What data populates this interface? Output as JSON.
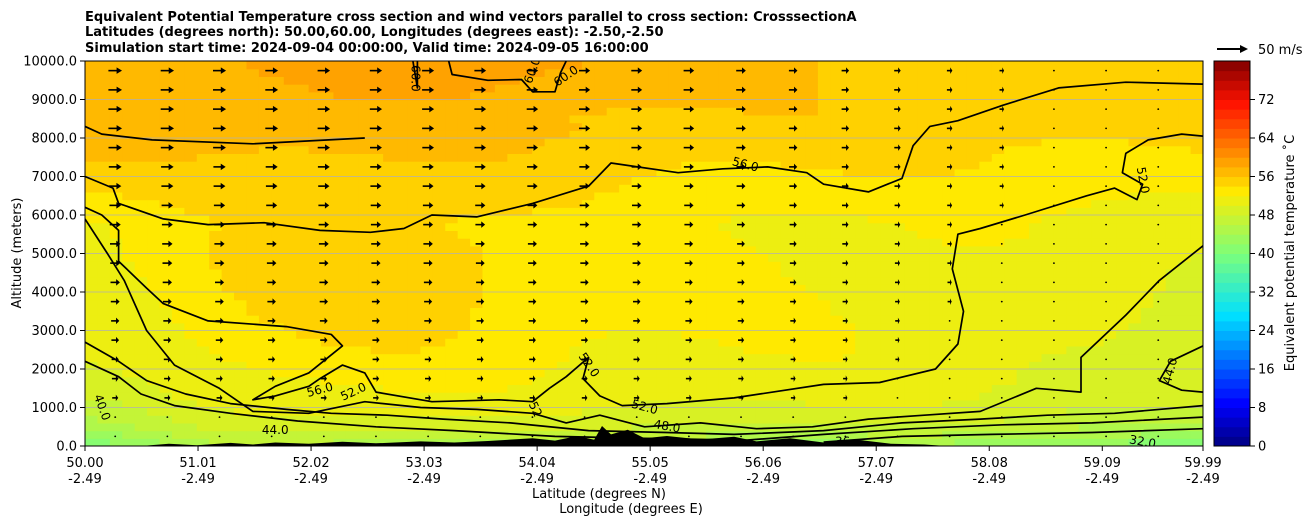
{
  "chart_data": {
    "type": "heatmap",
    "title_lines": [
      "Equivalent Potential Temperature cross section and wind vectors parallel to cross section: CrosssectionA",
      "Latitudes (degrees north): 50.00,60.00, Longitudes (degrees east): -2.50,-2.50",
      "Simulation start time: 2024-09-04 00:00:00, Valid time: 2024-09-05 16:00:00"
    ],
    "y_axis": {
      "label": "Altitude (meters)",
      "range": [
        0,
        10000
      ],
      "ticks": [
        "0.0",
        "1000.0",
        "2000.0",
        "3000.0",
        "4000.0",
        "5000.0",
        "6000.0",
        "7000.0",
        "8000.0",
        "9000.0",
        "10000.0"
      ],
      "grid": true
    },
    "x_axis": {
      "label_lat": "Latitude (degrees N)",
      "label_lon": "Longitude (degrees E)",
      "range": [
        50.0,
        59.99
      ],
      "ticks_lat": [
        "50.00",
        "51.01",
        "52.02",
        "53.03",
        "54.04",
        "55.05",
        "56.06",
        "57.07",
        "58.08",
        "59.09",
        "59.99"
      ],
      "ticks_lon": [
        "-2.49",
        "-2.49",
        "-2.49",
        "-2.49",
        "-2.49",
        "-2.49",
        "-2.49",
        "-2.49",
        "-2.49",
        "-2.49",
        "-2.49"
      ]
    },
    "colorbar": {
      "label": "Equivalent potential temperature $^\\circ$C",
      "label_text": "Equivalent potential temperature ˚C",
      "range": [
        0,
        80
      ],
      "ticks": [
        "0",
        "8",
        "16",
        "24",
        "32",
        "40",
        "48",
        "56",
        "64",
        "72"
      ]
    },
    "quiver_key": {
      "label": "50 m/s",
      "speed": 50
    },
    "contour_levels": [
      32,
      36,
      40,
      44,
      48,
      52,
      56,
      60
    ],
    "contour_labels": [
      {
        "text": "60.0",
        "lat": 52.95,
        "alt": 9550,
        "rot": 90
      },
      {
        "text": "60.0",
        "lat": 54.0,
        "alt": 9750,
        "rot": -70
      },
      {
        "text": "60.0",
        "lat": 54.3,
        "alt": 9600,
        "rot": -35
      },
      {
        "text": "56.0",
        "lat": 55.9,
        "alt": 7300,
        "rot": 15
      },
      {
        "text": "52.0",
        "lat": 59.45,
        "alt": 6900,
        "rot": 80
      },
      {
        "text": "56.0",
        "lat": 52.1,
        "alt": 1450,
        "rot": -15
      },
      {
        "text": "52.0",
        "lat": 52.4,
        "alt": 1400,
        "rot": -25
      },
      {
        "text": "52.0",
        "lat": 54.5,
        "alt": 2100,
        "rot": 55
      },
      {
        "text": "52.0",
        "lat": 55.0,
        "alt": 1000,
        "rot": 15
      },
      {
        "text": "48.0",
        "lat": 55.2,
        "alt": 500,
        "rot": 10
      },
      {
        "text": "52",
        "lat": 54.02,
        "alt": 950,
        "rot": 65
      },
      {
        "text": "44.0",
        "lat": 51.7,
        "alt": 400,
        "rot": 0
      },
      {
        "text": "40.0",
        "lat": 50.15,
        "alt": 1000,
        "rot": 70
      },
      {
        "text": "44.0",
        "lat": 59.7,
        "alt": 1950,
        "rot": -75
      },
      {
        "text": "36",
        "lat": 56.77,
        "alt": 100,
        "rot": 0
      },
      {
        "text": "32.0",
        "lat": 59.45,
        "alt": 100,
        "rot": 10
      }
    ],
    "contours": [
      {
        "level": 60,
        "points": [
          [
            52.93,
            10000
          ],
          [
            52.97,
            9300
          ],
          [
            52.97,
            10000
          ]
        ]
      },
      {
        "level": 60,
        "points": [
          [
            53.25,
            10000
          ],
          [
            53.28,
            9650
          ],
          [
            53.6,
            9500
          ],
          [
            53.9,
            9520
          ],
          [
            54.0,
            9200
          ],
          [
            54.2,
            9200
          ],
          [
            54.25,
            9700
          ],
          [
            54.3,
            10000
          ]
        ]
      },
      {
        "level": 56,
        "points": [
          [
            50.0,
            7000
          ],
          [
            50.25,
            6700
          ],
          [
            50.3,
            6300
          ],
          [
            50.7,
            5900
          ],
          [
            51.1,
            5750
          ],
          [
            51.6,
            5800
          ],
          [
            52.1,
            5600
          ],
          [
            52.55,
            5550
          ],
          [
            52.85,
            5650
          ],
          [
            53.1,
            6000
          ],
          [
            53.5,
            5950
          ],
          [
            54.0,
            6300
          ],
          [
            54.5,
            6750
          ],
          [
            54.7,
            7350
          ],
          [
            55.3,
            7100
          ],
          [
            55.7,
            7200
          ],
          [
            56.1,
            7250
          ],
          [
            56.45,
            7100
          ],
          [
            56.6,
            6800
          ],
          [
            57.0,
            6600
          ],
          [
            57.3,
            6950
          ],
          [
            57.4,
            7800
          ],
          [
            57.55,
            8300
          ],
          [
            57.8,
            8450
          ],
          [
            58.2,
            8850
          ],
          [
            58.7,
            9300
          ],
          [
            59.3,
            9450
          ],
          [
            59.99,
            9400
          ]
        ]
      },
      {
        "level": 52,
        "points": [
          [
            50.0,
            8300
          ],
          [
            50.15,
            8100
          ],
          [
            50.6,
            7950
          ],
          [
            51.5,
            7850
          ],
          [
            52.5,
            8000
          ]
        ]
      },
      {
        "level": 52,
        "points": [
          [
            59.99,
            8050
          ],
          [
            59.8,
            8100
          ],
          [
            59.5,
            7950
          ],
          [
            59.3,
            7600
          ],
          [
            59.27,
            7100
          ],
          [
            59.45,
            6800
          ],
          [
            59.4,
            6400
          ],
          [
            59.2,
            6700
          ],
          [
            58.95,
            6500
          ],
          [
            58.4,
            6000
          ],
          [
            58.0,
            5650
          ],
          [
            57.8,
            5500
          ],
          [
            57.75,
            4600
          ],
          [
            57.85,
            3500
          ],
          [
            57.8,
            2650
          ],
          [
            57.6,
            2000
          ],
          [
            57.1,
            1650
          ],
          [
            56.6,
            1600
          ],
          [
            55.8,
            1250
          ],
          [
            55.2,
            1100
          ],
          [
            54.8,
            1050
          ],
          [
            54.6,
            1300
          ],
          [
            54.45,
            1750
          ],
          [
            54.5,
            2300
          ],
          [
            54.3,
            1800
          ],
          [
            54.15,
            1500
          ],
          [
            54.0,
            1150
          ],
          [
            53.7,
            1200
          ],
          [
            53.1,
            1150
          ],
          [
            52.6,
            1400
          ],
          [
            52.5,
            1900
          ],
          [
            52.3,
            2100
          ],
          [
            52.1,
            1750
          ],
          [
            52.0,
            1550
          ],
          [
            51.7,
            1300
          ],
          [
            51.5,
            1200
          ],
          [
            51.7,
            1550
          ],
          [
            52.0,
            1900
          ],
          [
            52.3,
            2600
          ],
          [
            52.2,
            2900
          ],
          [
            51.8,
            3100
          ],
          [
            51.1,
            3250
          ],
          [
            50.7,
            3700
          ],
          [
            50.55,
            4100
          ],
          [
            50.3,
            4800
          ],
          [
            50.3,
            5600
          ],
          [
            50.15,
            6000
          ],
          [
            50.0,
            6200
          ]
        ]
      },
      {
        "level": 48,
        "points": [
          [
            50.0,
            5900
          ],
          [
            50.2,
            5000
          ],
          [
            50.35,
            4300
          ],
          [
            50.55,
            3000
          ],
          [
            50.8,
            2100
          ],
          [
            51.2,
            1500
          ],
          [
            51.5,
            900
          ],
          [
            52.0,
            850
          ],
          [
            52.5,
            1150
          ],
          [
            53.0,
            1000
          ],
          [
            53.5,
            950
          ],
          [
            54.0,
            850
          ],
          [
            54.3,
            600
          ],
          [
            54.6,
            800
          ],
          [
            55.0,
            500
          ],
          [
            55.5,
            600
          ],
          [
            56.0,
            450
          ],
          [
            56.5,
            500
          ],
          [
            57.0,
            700
          ],
          [
            57.5,
            800
          ],
          [
            58.0,
            900
          ],
          [
            58.5,
            1500
          ],
          [
            58.9,
            1400
          ],
          [
            58.9,
            2300
          ],
          [
            59.3,
            3400
          ],
          [
            59.6,
            4300
          ],
          [
            59.99,
            5200
          ]
        ]
      },
      {
        "level": 44,
        "points": [
          [
            50.0,
            2700
          ],
          [
            50.3,
            2200
          ],
          [
            50.55,
            1700
          ],
          [
            50.9,
            1350
          ],
          [
            51.3,
            1100
          ],
          [
            51.8,
            950
          ],
          [
            52.2,
            850
          ],
          [
            52.7,
            800
          ],
          [
            53.2,
            700
          ],
          [
            53.8,
            600
          ],
          [
            54.5,
            400
          ],
          [
            55.2,
            350
          ],
          [
            55.8,
            300
          ],
          [
            56.6,
            400
          ],
          [
            57.3,
            600
          ],
          [
            58.0,
            700
          ],
          [
            58.6,
            800
          ],
          [
            59.2,
            850
          ],
          [
            59.99,
            1050
          ]
        ]
      },
      {
        "level": 40,
        "points": [
          [
            50.0,
            2200
          ],
          [
            50.3,
            1800
          ],
          [
            50.5,
            1350
          ],
          [
            50.8,
            1050
          ],
          [
            51.3,
            850
          ],
          [
            51.9,
            650
          ],
          [
            52.6,
            500
          ],
          [
            53.3,
            400
          ],
          [
            54.2,
            250
          ],
          [
            55.0,
            200
          ],
          [
            55.9,
            150
          ],
          [
            56.6,
            300
          ],
          [
            57.4,
            450
          ],
          [
            58.2,
            550
          ],
          [
            59.0,
            600
          ],
          [
            59.99,
            750
          ]
        ]
      },
      {
        "level": 36,
        "points": [
          [
            56.6,
            100
          ],
          [
            57.3,
            250
          ],
          [
            58.1,
            300
          ],
          [
            59.0,
            350
          ],
          [
            59.99,
            450
          ]
        ]
      },
      {
        "level": 44,
        "points": [
          [
            59.99,
            2600
          ],
          [
            59.7,
            2200
          ],
          [
            59.6,
            1700
          ],
          [
            59.8,
            1450
          ],
          [
            59.99,
            1400
          ]
        ]
      }
    ],
    "wind": {
      "lat_start": 50.27,
      "lat_step": 0.466,
      "alt_start": 250,
      "alt_step": 500,
      "columns": 21,
      "rows": 20,
      "note": "wind components parallel to section, m/s; generated from a smooth field estimated from the figure"
    }
  }
}
